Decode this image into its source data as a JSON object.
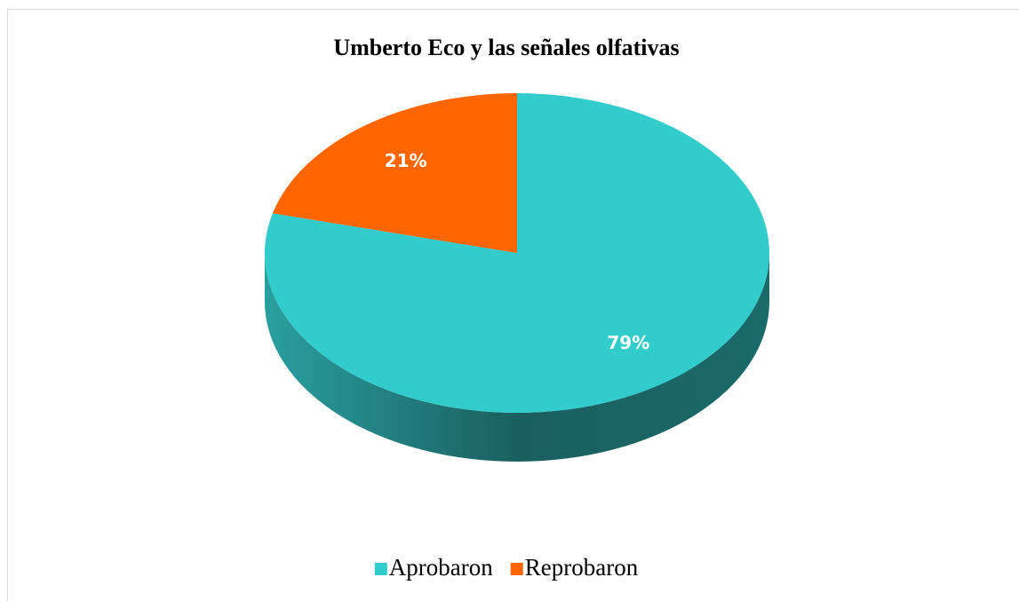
{
  "chart_data": {
    "type": "pie",
    "title": "Umberto Eco y las señales olfativas",
    "categories": [
      "Aprobaron",
      "Reprobaron"
    ],
    "values": [
      79,
      21
    ],
    "value_labels": [
      "79%",
      "21%"
    ],
    "colors": [
      "#33cccc",
      "#ff6600"
    ],
    "legend": "bottom"
  }
}
